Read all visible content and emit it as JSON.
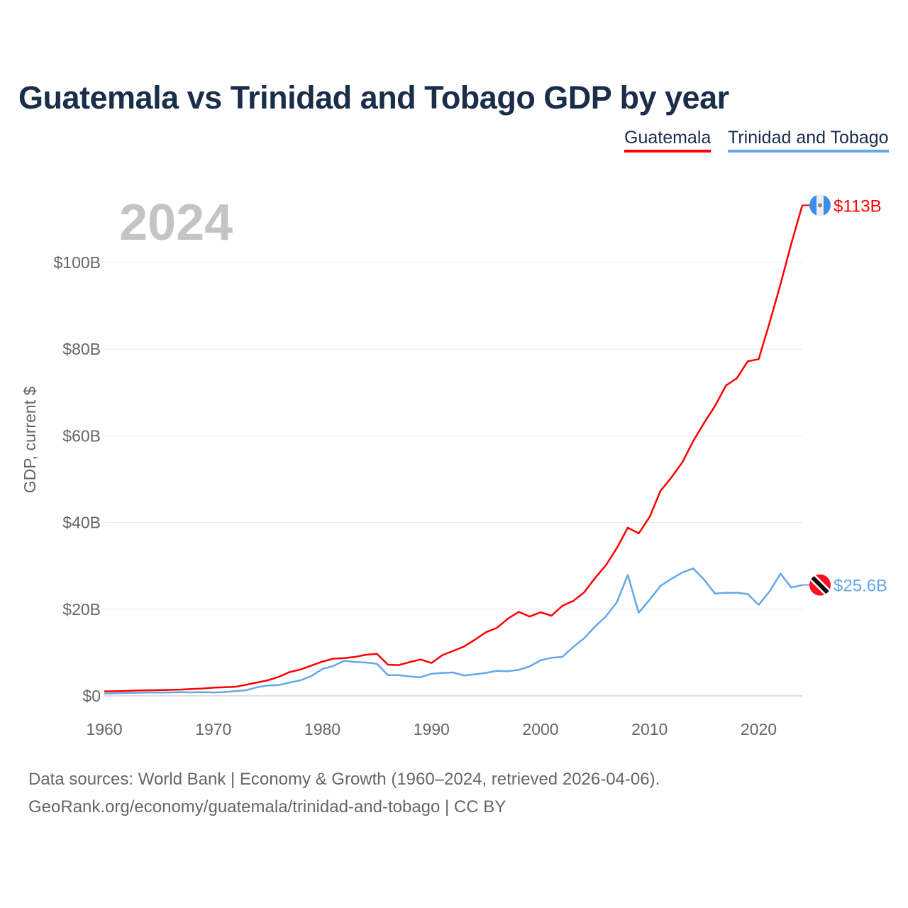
{
  "chart_data": {
    "type": "line",
    "title": "Guatemala vs Trinidad and Tobago GDP by year",
    "ylabel": "GDP, current $",
    "xlabel": "",
    "year_label": "2024",
    "xlim": [
      1960,
      2024
    ],
    "ylim": [
      0,
      113
    ],
    "x_ticks": [
      1960,
      1970,
      1980,
      1990,
      2000,
      2010,
      2020
    ],
    "y_ticks": [
      {
        "v": 0,
        "label": "$0"
      },
      {
        "v": 20,
        "label": "$20B"
      },
      {
        "v": 40,
        "label": "$40B"
      },
      {
        "v": 60,
        "label": "$60B"
      },
      {
        "v": 80,
        "label": "$80B"
      },
      {
        "v": 100,
        "label": "$100B"
      }
    ],
    "grid": true,
    "legend_position": "top-right",
    "series": [
      {
        "name": "Guatemala",
        "color": "#ff0000",
        "end_label": "$113B",
        "unit": "billion USD",
        "values": [
          1.04,
          1.08,
          1.14,
          1.24,
          1.29,
          1.33,
          1.39,
          1.45,
          1.59,
          1.7,
          1.9,
          1.99,
          2.1,
          2.57,
          3.1,
          3.6,
          4.4,
          5.5,
          6.1,
          7.0,
          7.9,
          8.6,
          8.7,
          9.0,
          9.5,
          9.7,
          7.2,
          7.1,
          7.8,
          8.4,
          7.6,
          9.4,
          10.4,
          11.4,
          13.0,
          14.7,
          15.7,
          17.8,
          19.4,
          18.3,
          19.3,
          18.5,
          20.8,
          21.9,
          23.9,
          27.2,
          30.2,
          34.1,
          38.8,
          37.5,
          41.3,
          47.3,
          50.4,
          53.9,
          58.8,
          63.0,
          66.9,
          71.6,
          73.3,
          77.2,
          77.7,
          86.1,
          95.0,
          104.4,
          113.2
        ]
      },
      {
        "name": "Trinidad and Tobago",
        "color": "#64a8ea",
        "end_label": "$25.6B",
        "unit": "billion USD",
        "values": [
          0.54,
          0.62,
          0.67,
          0.72,
          0.77,
          0.79,
          0.81,
          0.85,
          0.82,
          0.86,
          0.8,
          0.88,
          1.1,
          1.3,
          2.0,
          2.4,
          2.5,
          3.1,
          3.6,
          4.6,
          6.2,
          6.9,
          8.1,
          7.8,
          7.7,
          7.4,
          4.8,
          4.8,
          4.5,
          4.3,
          5.1,
          5.3,
          5.4,
          4.7,
          5.0,
          5.3,
          5.8,
          5.7,
          6.0,
          6.8,
          8.2,
          8.8,
          9.0,
          11.3,
          13.3,
          16.0,
          18.4,
          21.6,
          27.9,
          19.2,
          22.2,
          25.4,
          27.0,
          28.5,
          29.4,
          26.8,
          23.6,
          23.8,
          23.8,
          23.5,
          21.0,
          24.1,
          28.2,
          25.0,
          25.6
        ]
      }
    ]
  },
  "footer": {
    "line1": "Data sources: World Bank | Economy & Growth (1960–2024, retrieved 2026-04-06).",
    "line2": "GeoRank.org/economy/guatemala/trinidad-and-tobago | CC BY"
  }
}
